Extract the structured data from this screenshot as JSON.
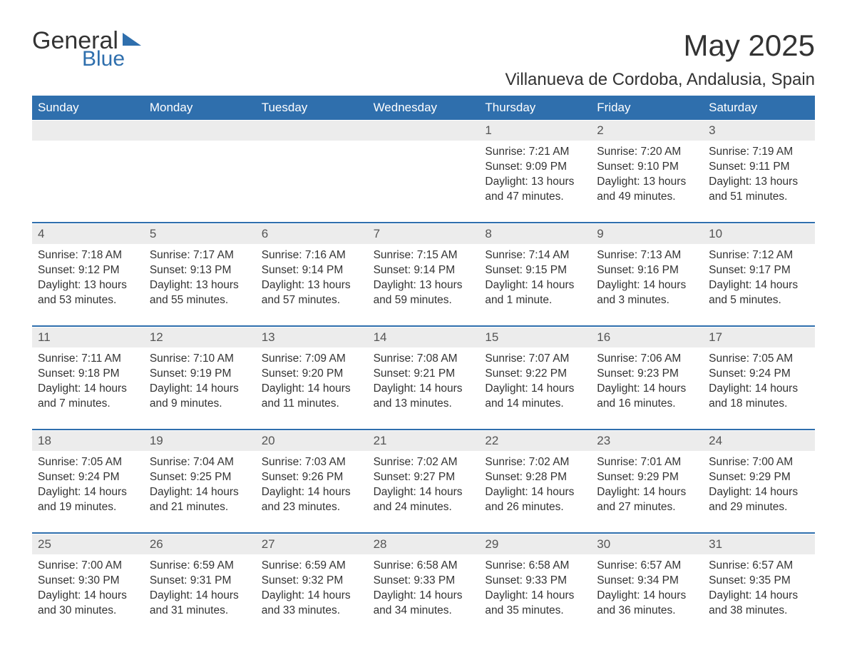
{
  "brand": {
    "text1": "General",
    "text2": "Blue",
    "accent_color": "#2f6fad"
  },
  "title": {
    "month": "May 2025",
    "location": "Villanueva de Cordoba, Andalusia, Spain"
  },
  "colors": {
    "header_bg": "#2f6fad",
    "daynum_bg": "#ececec",
    "text": "#333333",
    "page_bg": "#ffffff"
  },
  "dow": [
    "Sunday",
    "Monday",
    "Tuesday",
    "Wednesday",
    "Thursday",
    "Friday",
    "Saturday"
  ],
  "weeks": [
    [
      null,
      null,
      null,
      null,
      {
        "n": "1",
        "sr": "Sunrise: 7:21 AM",
        "ss": "Sunset: 9:09 PM",
        "d1": "Daylight: 13 hours",
        "d2": "and 47 minutes."
      },
      {
        "n": "2",
        "sr": "Sunrise: 7:20 AM",
        "ss": "Sunset: 9:10 PM",
        "d1": "Daylight: 13 hours",
        "d2": "and 49 minutes."
      },
      {
        "n": "3",
        "sr": "Sunrise: 7:19 AM",
        "ss": "Sunset: 9:11 PM",
        "d1": "Daylight: 13 hours",
        "d2": "and 51 minutes."
      }
    ],
    [
      {
        "n": "4",
        "sr": "Sunrise: 7:18 AM",
        "ss": "Sunset: 9:12 PM",
        "d1": "Daylight: 13 hours",
        "d2": "and 53 minutes."
      },
      {
        "n": "5",
        "sr": "Sunrise: 7:17 AM",
        "ss": "Sunset: 9:13 PM",
        "d1": "Daylight: 13 hours",
        "d2": "and 55 minutes."
      },
      {
        "n": "6",
        "sr": "Sunrise: 7:16 AM",
        "ss": "Sunset: 9:14 PM",
        "d1": "Daylight: 13 hours",
        "d2": "and 57 minutes."
      },
      {
        "n": "7",
        "sr": "Sunrise: 7:15 AM",
        "ss": "Sunset: 9:14 PM",
        "d1": "Daylight: 13 hours",
        "d2": "and 59 minutes."
      },
      {
        "n": "8",
        "sr": "Sunrise: 7:14 AM",
        "ss": "Sunset: 9:15 PM",
        "d1": "Daylight: 14 hours",
        "d2": "and 1 minute."
      },
      {
        "n": "9",
        "sr": "Sunrise: 7:13 AM",
        "ss": "Sunset: 9:16 PM",
        "d1": "Daylight: 14 hours",
        "d2": "and 3 minutes."
      },
      {
        "n": "10",
        "sr": "Sunrise: 7:12 AM",
        "ss": "Sunset: 9:17 PM",
        "d1": "Daylight: 14 hours",
        "d2": "and 5 minutes."
      }
    ],
    [
      {
        "n": "11",
        "sr": "Sunrise: 7:11 AM",
        "ss": "Sunset: 9:18 PM",
        "d1": "Daylight: 14 hours",
        "d2": "and 7 minutes."
      },
      {
        "n": "12",
        "sr": "Sunrise: 7:10 AM",
        "ss": "Sunset: 9:19 PM",
        "d1": "Daylight: 14 hours",
        "d2": "and 9 minutes."
      },
      {
        "n": "13",
        "sr": "Sunrise: 7:09 AM",
        "ss": "Sunset: 9:20 PM",
        "d1": "Daylight: 14 hours",
        "d2": "and 11 minutes."
      },
      {
        "n": "14",
        "sr": "Sunrise: 7:08 AM",
        "ss": "Sunset: 9:21 PM",
        "d1": "Daylight: 14 hours",
        "d2": "and 13 minutes."
      },
      {
        "n": "15",
        "sr": "Sunrise: 7:07 AM",
        "ss": "Sunset: 9:22 PM",
        "d1": "Daylight: 14 hours",
        "d2": "and 14 minutes."
      },
      {
        "n": "16",
        "sr": "Sunrise: 7:06 AM",
        "ss": "Sunset: 9:23 PM",
        "d1": "Daylight: 14 hours",
        "d2": "and 16 minutes."
      },
      {
        "n": "17",
        "sr": "Sunrise: 7:05 AM",
        "ss": "Sunset: 9:24 PM",
        "d1": "Daylight: 14 hours",
        "d2": "and 18 minutes."
      }
    ],
    [
      {
        "n": "18",
        "sr": "Sunrise: 7:05 AM",
        "ss": "Sunset: 9:24 PM",
        "d1": "Daylight: 14 hours",
        "d2": "and 19 minutes."
      },
      {
        "n": "19",
        "sr": "Sunrise: 7:04 AM",
        "ss": "Sunset: 9:25 PM",
        "d1": "Daylight: 14 hours",
        "d2": "and 21 minutes."
      },
      {
        "n": "20",
        "sr": "Sunrise: 7:03 AM",
        "ss": "Sunset: 9:26 PM",
        "d1": "Daylight: 14 hours",
        "d2": "and 23 minutes."
      },
      {
        "n": "21",
        "sr": "Sunrise: 7:02 AM",
        "ss": "Sunset: 9:27 PM",
        "d1": "Daylight: 14 hours",
        "d2": "and 24 minutes."
      },
      {
        "n": "22",
        "sr": "Sunrise: 7:02 AM",
        "ss": "Sunset: 9:28 PM",
        "d1": "Daylight: 14 hours",
        "d2": "and 26 minutes."
      },
      {
        "n": "23",
        "sr": "Sunrise: 7:01 AM",
        "ss": "Sunset: 9:29 PM",
        "d1": "Daylight: 14 hours",
        "d2": "and 27 minutes."
      },
      {
        "n": "24",
        "sr": "Sunrise: 7:00 AM",
        "ss": "Sunset: 9:29 PM",
        "d1": "Daylight: 14 hours",
        "d2": "and 29 minutes."
      }
    ],
    [
      {
        "n": "25",
        "sr": "Sunrise: 7:00 AM",
        "ss": "Sunset: 9:30 PM",
        "d1": "Daylight: 14 hours",
        "d2": "and 30 minutes."
      },
      {
        "n": "26",
        "sr": "Sunrise: 6:59 AM",
        "ss": "Sunset: 9:31 PM",
        "d1": "Daylight: 14 hours",
        "d2": "and 31 minutes."
      },
      {
        "n": "27",
        "sr": "Sunrise: 6:59 AM",
        "ss": "Sunset: 9:32 PM",
        "d1": "Daylight: 14 hours",
        "d2": "and 33 minutes."
      },
      {
        "n": "28",
        "sr": "Sunrise: 6:58 AM",
        "ss": "Sunset: 9:33 PM",
        "d1": "Daylight: 14 hours",
        "d2": "and 34 minutes."
      },
      {
        "n": "29",
        "sr": "Sunrise: 6:58 AM",
        "ss": "Sunset: 9:33 PM",
        "d1": "Daylight: 14 hours",
        "d2": "and 35 minutes."
      },
      {
        "n": "30",
        "sr": "Sunrise: 6:57 AM",
        "ss": "Sunset: 9:34 PM",
        "d1": "Daylight: 14 hours",
        "d2": "and 36 minutes."
      },
      {
        "n": "31",
        "sr": "Sunrise: 6:57 AM",
        "ss": "Sunset: 9:35 PM",
        "d1": "Daylight: 14 hours",
        "d2": "and 38 minutes."
      }
    ]
  ]
}
